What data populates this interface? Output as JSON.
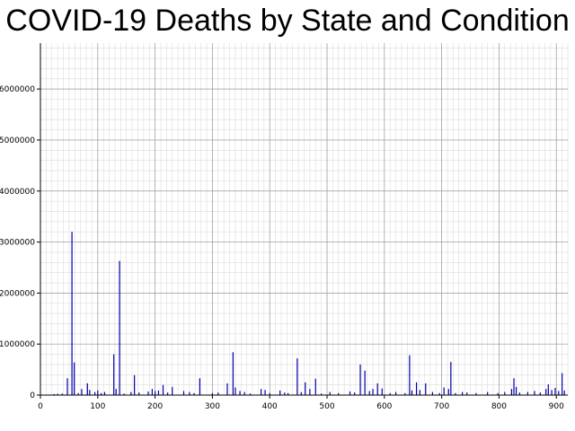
{
  "chart_data": {
    "type": "bar",
    "title": "COVID-19 Deaths by State and Condition",
    "xlabel": "",
    "ylabel": "",
    "xlim": [
      0,
      920
    ],
    "ylim": [
      0,
      6900000
    ],
    "x_ticks": [
      0,
      100,
      200,
      300,
      400,
      500,
      600,
      700,
      800,
      900
    ],
    "x_tick_labels": [
      "0",
      "100",
      "200",
      "300",
      "400",
      "500",
      "600",
      "700",
      "800",
      "900"
    ],
    "y_ticks": [
      0,
      1000000,
      2000000,
      3000000,
      4000000,
      5000000,
      6000000
    ],
    "y_tick_labels": [
      "0",
      "1000000",
      "2000000",
      "3000000",
      "4000000",
      "5000000",
      "6000000"
    ],
    "grid": true,
    "bar_color": "#0000aa",
    "points": [
      [
        24,
        20000
      ],
      [
        30,
        25000
      ],
      [
        38,
        30000
      ],
      [
        47,
        330000
      ],
      [
        55,
        3200000
      ],
      [
        59,
        640000
      ],
      [
        66,
        40000
      ],
      [
        72,
        120000
      ],
      [
        82,
        230000
      ],
      [
        86,
        100000
      ],
      [
        95,
        60000
      ],
      [
        100,
        90000
      ],
      [
        106,
        40000
      ],
      [
        112,
        60000
      ],
      [
        128,
        800000
      ],
      [
        132,
        120000
      ],
      [
        138,
        2630000
      ],
      [
        146,
        30000
      ],
      [
        158,
        60000
      ],
      [
        164,
        390000
      ],
      [
        172,
        50000
      ],
      [
        188,
        70000
      ],
      [
        195,
        120000
      ],
      [
        200,
        80000
      ],
      [
        206,
        90000
      ],
      [
        214,
        200000
      ],
      [
        222,
        50000
      ],
      [
        230,
        160000
      ],
      [
        250,
        80000
      ],
      [
        260,
        60000
      ],
      [
        268,
        40000
      ],
      [
        278,
        330000
      ],
      [
        300,
        40000
      ],
      [
        310,
        50000
      ],
      [
        326,
        230000
      ],
      [
        336,
        840000
      ],
      [
        340,
        150000
      ],
      [
        348,
        80000
      ],
      [
        356,
        60000
      ],
      [
        366,
        30000
      ],
      [
        385,
        120000
      ],
      [
        392,
        100000
      ],
      [
        400,
        40000
      ],
      [
        418,
        90000
      ],
      [
        426,
        50000
      ],
      [
        432,
        40000
      ],
      [
        448,
        720000
      ],
      [
        455,
        60000
      ],
      [
        462,
        250000
      ],
      [
        470,
        120000
      ],
      [
        480,
        320000
      ],
      [
        490,
        30000
      ],
      [
        505,
        60000
      ],
      [
        520,
        40000
      ],
      [
        540,
        70000
      ],
      [
        548,
        50000
      ],
      [
        558,
        600000
      ],
      [
        566,
        480000
      ],
      [
        574,
        80000
      ],
      [
        580,
        120000
      ],
      [
        588,
        230000
      ],
      [
        596,
        130000
      ],
      [
        610,
        40000
      ],
      [
        620,
        60000
      ],
      [
        636,
        40000
      ],
      [
        644,
        780000
      ],
      [
        648,
        90000
      ],
      [
        656,
        250000
      ],
      [
        662,
        100000
      ],
      [
        672,
        230000
      ],
      [
        684,
        60000
      ],
      [
        696,
        40000
      ],
      [
        704,
        150000
      ],
      [
        712,
        120000
      ],
      [
        716,
        650000
      ],
      [
        724,
        40000
      ],
      [
        736,
        60000
      ],
      [
        744,
        50000
      ],
      [
        760,
        40000
      ],
      [
        780,
        60000
      ],
      [
        798,
        40000
      ],
      [
        810,
        60000
      ],
      [
        822,
        120000
      ],
      [
        826,
        330000
      ],
      [
        830,
        160000
      ],
      [
        836,
        50000
      ],
      [
        850,
        60000
      ],
      [
        862,
        80000
      ],
      [
        872,
        50000
      ],
      [
        882,
        120000
      ],
      [
        886,
        210000
      ],
      [
        892,
        100000
      ],
      [
        898,
        140000
      ],
      [
        904,
        80000
      ],
      [
        910,
        430000
      ],
      [
        914,
        90000
      ]
    ]
  }
}
